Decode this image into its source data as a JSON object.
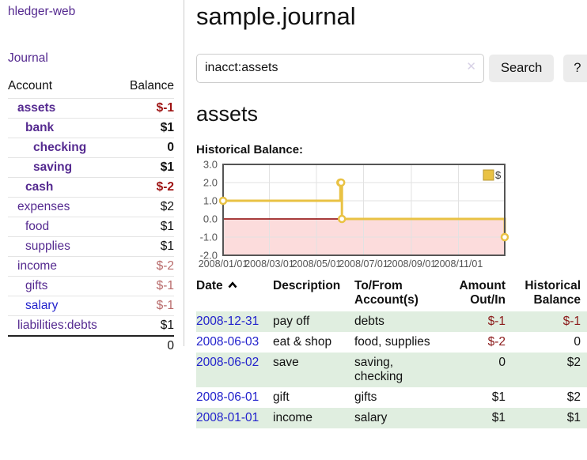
{
  "app_title": "hledger-web",
  "sidebar": {
    "journal_link": "Journal",
    "accounts": {
      "header_account": "Account",
      "header_balance": "Balance",
      "rows": [
        {
          "name": "assets",
          "depth": 1,
          "bold": true,
          "balance": "$-1",
          "balance_tone": "neg-strong"
        },
        {
          "name": "bank",
          "depth": 2,
          "bold": true,
          "balance": "$1",
          "balance_tone": "plain"
        },
        {
          "name": "checking",
          "depth": 3,
          "bold": true,
          "balance": "0",
          "balance_tone": "plain"
        },
        {
          "name": "saving",
          "depth": 3,
          "bold": true,
          "balance": "$1",
          "balance_tone": "plain"
        },
        {
          "name": "cash",
          "depth": 2,
          "bold": true,
          "balance": "$-2",
          "balance_tone": "neg-strong"
        },
        {
          "name": "expenses",
          "depth": 1,
          "bold": false,
          "balance": "$2",
          "balance_tone": "plain"
        },
        {
          "name": "food",
          "depth": 2,
          "bold": false,
          "balance": "$1",
          "balance_tone": "plain"
        },
        {
          "name": "supplies",
          "depth": 2,
          "bold": false,
          "balance": "$1",
          "balance_tone": "plain"
        },
        {
          "name": "income",
          "depth": 1,
          "bold": false,
          "balance": "$-2",
          "balance_tone": "neg-soft"
        },
        {
          "name": "gifts",
          "depth": 2,
          "bold": false,
          "balance": "$-1",
          "balance_tone": "neg-soft"
        },
        {
          "name": "salary",
          "depth": 2,
          "bold": false,
          "balance": "$-1",
          "balance_tone": "neg-soft",
          "blue": true
        },
        {
          "name": "liabilities:debts",
          "depth": 1,
          "bold": false,
          "balance": "$1",
          "balance_tone": "plain"
        }
      ],
      "total": "0"
    }
  },
  "main": {
    "page_title": "sample.journal",
    "search": {
      "value": "inacct:assets",
      "clear_icon": "✕",
      "search_button": "Search",
      "help_button": "?"
    },
    "account_heading": "assets",
    "chart_title": "Historical Balance:"
  },
  "chart_data": {
    "type": "line",
    "step": true,
    "title": "Historical Balance",
    "series": [
      {
        "name": "$",
        "points": [
          [
            "2008-01-01",
            1
          ],
          [
            "2008-06-01",
            2
          ],
          [
            "2008-06-02",
            2
          ],
          [
            "2008-06-03",
            0
          ],
          [
            "2008-12-31",
            -1
          ]
        ]
      }
    ],
    "x_ticks": [
      "2008/01/01",
      "2008/03/01",
      "2008/05/01",
      "2008/07/01",
      "2008/09/01",
      "2008/11/01"
    ],
    "y_ticks": [
      3.0,
      2.0,
      1.0,
      0.0,
      -1.0,
      -2.0
    ],
    "xlim": [
      "2008-01-01",
      "2008-12-31"
    ],
    "ylim": [
      -2,
      3
    ],
    "grid": true,
    "legend_position": "top-right"
  },
  "register": {
    "headers": [
      "Date",
      "Description",
      "To/From Account(s)",
      "Amount Out/In",
      "Historical Balance"
    ],
    "sort_icon": "chevron-up",
    "rows": [
      {
        "date": "2008-12-31",
        "description": "pay off",
        "accounts": "debts",
        "amount": "$-1",
        "amount_neg": true,
        "balance": "$-1",
        "balance_neg": true
      },
      {
        "date": "2008-06-03",
        "description": "eat & shop",
        "accounts": "food, supplies",
        "amount": "$-2",
        "amount_neg": true,
        "balance": "0",
        "balance_neg": false
      },
      {
        "date": "2008-06-02",
        "description": "save",
        "accounts": "saving, checking",
        "amount": "0",
        "amount_neg": false,
        "balance": "$2",
        "balance_neg": false
      },
      {
        "date": "2008-06-01",
        "description": "gift",
        "accounts": "gifts",
        "amount": "$1",
        "amount_neg": false,
        "balance": "$2",
        "balance_neg": false
      },
      {
        "date": "2008-01-01",
        "description": "income",
        "accounts": "salary",
        "amount": "$1",
        "amount_neg": false,
        "balance": "$1",
        "balance_neg": false
      }
    ]
  },
  "colors": {
    "link_purple": "#552a90",
    "link_blue": "#2222cc",
    "neg_strong": "#9e1313",
    "neg_soft": "#b86a6a",
    "register_neg": "#8b1a1a",
    "table_stripe_green": "#e0eee0",
    "chart_line": "#e9c244",
    "chart_legend_box_border": "#b89730",
    "chart_negative_fill": "#fcdcdc",
    "chart_zero_line": "#8b0000",
    "chart_border": "#555555",
    "chart_grid": "#e2e2e2",
    "chart_tick_text": "#545454"
  }
}
